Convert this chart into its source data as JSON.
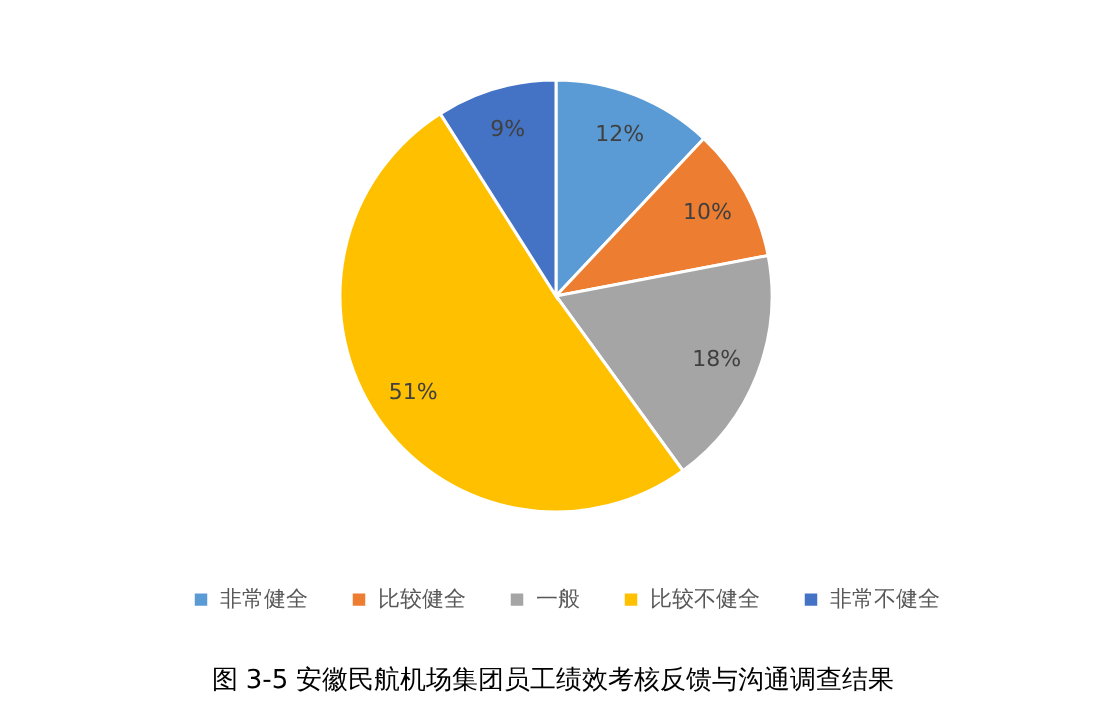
{
  "chart_data": {
    "type": "pie",
    "title": "图 3-5 安徽民航机场集团员工绩效考核反馈与沟通调查结果",
    "categories": [
      "非常健全",
      "比较健全",
      "一般",
      "比较不健全",
      "非常不健全"
    ],
    "values": [
      12,
      10,
      18,
      51,
      9
    ],
    "colors": [
      "#5b9bd5",
      "#ed7d31",
      "#a5a5a5",
      "#ffc000",
      "#4472c4"
    ],
    "value_labels": [
      "12%",
      "10%",
      "18%",
      "51%",
      "9%"
    ],
    "legend": "bottom"
  }
}
